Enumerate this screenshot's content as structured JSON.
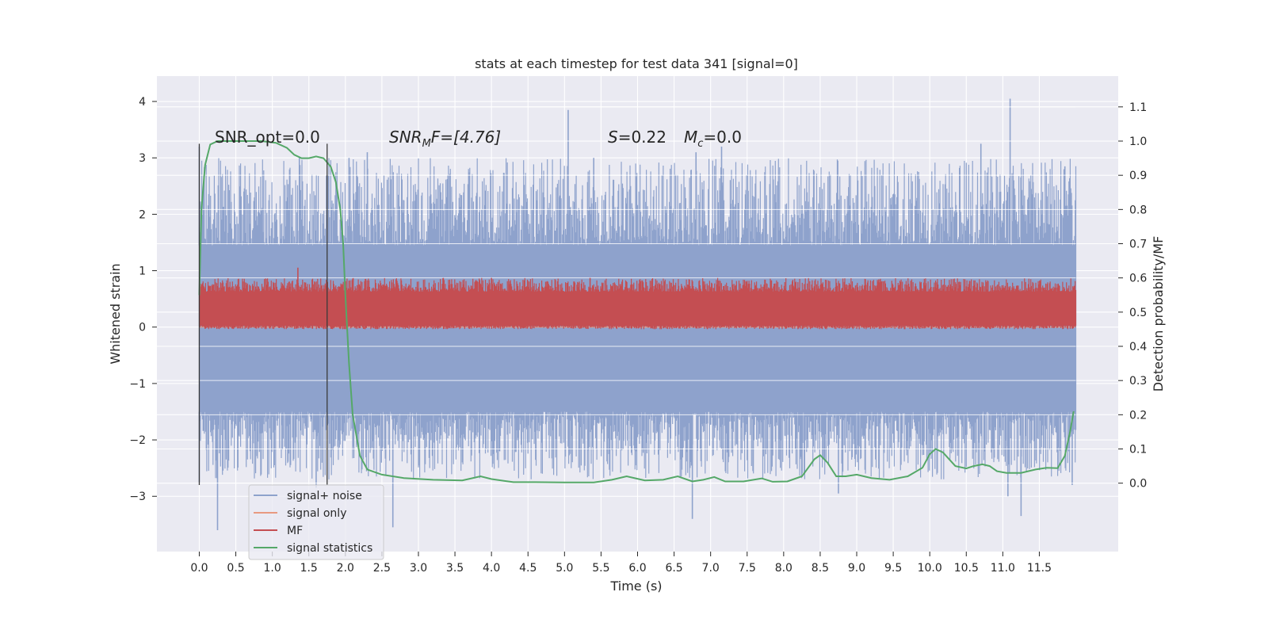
{
  "chart_data": {
    "type": "line",
    "title": "stats at each timestep for test data 341 [signal=0]",
    "xlabel": "Time (s)",
    "ylabel_left": "Whitened strain",
    "ylabel_right": "Detection probability/MF",
    "xlim": [
      -0.58,
      12.58
    ],
    "ylim_left": [
      -3.98,
      4.45
    ],
    "ylim_right": [
      -0.2,
      1.19
    ],
    "x_ticks": [
      "0.0",
      "0.5",
      "1.0",
      "1.5",
      "2.0",
      "2.5",
      "3.0",
      "3.5",
      "4.0",
      "4.5",
      "5.0",
      "5.5",
      "6.0",
      "6.5",
      "7.0",
      "7.5",
      "8.0",
      "8.5",
      "9.0",
      "9.5",
      "10.0",
      "10.5",
      "11.0",
      "11.5"
    ],
    "y_ticks_left": [
      "−3",
      "−2",
      "−1",
      "0",
      "1",
      "2",
      "3",
      "4"
    ],
    "y_ticks_right": [
      "0.0",
      "0.1",
      "0.2",
      "0.3",
      "0.4",
      "0.5",
      "0.6",
      "0.7",
      "0.8",
      "0.9",
      "1.0",
      "1.1"
    ],
    "grid": true,
    "background": "#eaeaf2",
    "annotations": {
      "snr_opt": "SNR_opt=0.0",
      "snr_mf_name": "SNR",
      "snr_mf_sub": "M",
      "snr_mf_rest": "F=[4.76]",
      "s_name": "S",
      "s_value": "=0.22",
      "mc_name": "M",
      "mc_sub": "c",
      "mc_value": "=0.0"
    },
    "vertical_markers_x": [
      0.0,
      1.75
    ],
    "series": [
      {
        "name": "signal+ noise",
        "axis": "left",
        "color": "#8ea2cc",
        "band": {
          "x_start": 0.0,
          "x_end": 12.0,
          "core_low": -1.5,
          "core_high": 1.45,
          "envelope_low": -2.7,
          "envelope_high": 3.0
        },
        "spikes": [
          {
            "x": 0.0,
            "y": 3.2
          },
          {
            "x": 0.0,
            "y": -2.75
          },
          {
            "x": 0.25,
            "y": -3.6
          },
          {
            "x": 1.37,
            "y": 3.0
          },
          {
            "x": 1.6,
            "y": -2.85
          },
          {
            "x": 2.05,
            "y": 3.0
          },
          {
            "x": 2.65,
            "y": -3.55
          },
          {
            "x": 2.3,
            "y": 3.1
          },
          {
            "x": 5.05,
            "y": 3.85
          },
          {
            "x": 5.4,
            "y": 3.0
          },
          {
            "x": 6.75,
            "y": -3.4
          },
          {
            "x": 6.8,
            "y": 3.1
          },
          {
            "x": 7.15,
            "y": 3.2
          },
          {
            "x": 8.75,
            "y": -2.95
          },
          {
            "x": 10.7,
            "y": 3.25
          },
          {
            "x": 11.1,
            "y": 4.05
          },
          {
            "x": 11.25,
            "y": -3.35
          },
          {
            "x": 11.07,
            "y": -3.0
          },
          {
            "x": 11.85,
            "y": 2.85
          },
          {
            "x": 11.95,
            "y": -2.8
          }
        ]
      },
      {
        "name": "signal only",
        "axis": "left",
        "color": "#e89a80",
        "constant": 0.0
      },
      {
        "name": "MF",
        "axis": "right",
        "color": "#c44e52",
        "band": {
          "x_start": 0.0,
          "x_end": 12.0,
          "core_low": 0.46,
          "core_high": 0.56,
          "envelope_low": 0.45,
          "envelope_high": 0.6
        },
        "spikes": [
          {
            "x": 1.35,
            "y": 0.63
          },
          {
            "x": 4.0,
            "y": 0.6
          },
          {
            "x": 5.35,
            "y": 0.6
          }
        ]
      },
      {
        "name": "signal statistics",
        "axis": "right",
        "color": "#55a868",
        "x": [
          0.0,
          0.03,
          0.08,
          0.15,
          0.25,
          0.4,
          0.6,
          0.85,
          1.05,
          1.2,
          1.3,
          1.4,
          1.5,
          1.6,
          1.7,
          1.8,
          1.87,
          1.93,
          1.97,
          2.0,
          2.05,
          2.1,
          2.2,
          2.3,
          2.5,
          2.8,
          3.2,
          3.6,
          3.85,
          4.0,
          4.3,
          4.6,
          5.0,
          5.4,
          5.65,
          5.85,
          6.1,
          6.35,
          6.55,
          6.75,
          6.9,
          7.05,
          7.2,
          7.45,
          7.7,
          7.85,
          8.05,
          8.25,
          8.42,
          8.5,
          8.6,
          8.72,
          8.85,
          9.0,
          9.2,
          9.45,
          9.7,
          9.9,
          10.0,
          10.08,
          10.18,
          10.35,
          10.5,
          10.6,
          10.72,
          10.82,
          10.92,
          11.05,
          11.25,
          11.45,
          11.6,
          11.75,
          11.85,
          11.92,
          11.97
        ],
        "values": [
          0.55,
          0.8,
          0.93,
          0.99,
          1.0,
          1.0,
          1.0,
          1.0,
          0.995,
          0.98,
          0.96,
          0.95,
          0.95,
          0.955,
          0.95,
          0.925,
          0.88,
          0.8,
          0.7,
          0.55,
          0.35,
          0.2,
          0.08,
          0.04,
          0.025,
          0.015,
          0.01,
          0.008,
          0.02,
          0.012,
          0.003,
          0.003,
          0.002,
          0.002,
          0.01,
          0.02,
          0.008,
          0.01,
          0.02,
          0.005,
          0.01,
          0.018,
          0.005,
          0.005,
          0.014,
          0.004,
          0.005,
          0.02,
          0.07,
          0.082,
          0.06,
          0.02,
          0.02,
          0.025,
          0.015,
          0.01,
          0.02,
          0.045,
          0.085,
          0.1,
          0.09,
          0.05,
          0.043,
          0.05,
          0.055,
          0.05,
          0.035,
          0.03,
          0.03,
          0.04,
          0.045,
          0.044,
          0.08,
          0.15,
          0.21
        ]
      }
    ],
    "legend": {
      "placement": "lower-left",
      "entries": [
        {
          "label": "signal+ noise",
          "color": "#8ea2cc"
        },
        {
          "label": "signal only",
          "color": "#e89a80"
        },
        {
          "label": "MF",
          "color": "#c44e52"
        },
        {
          "label": "signal statistics",
          "color": "#55a868"
        }
      ]
    }
  }
}
